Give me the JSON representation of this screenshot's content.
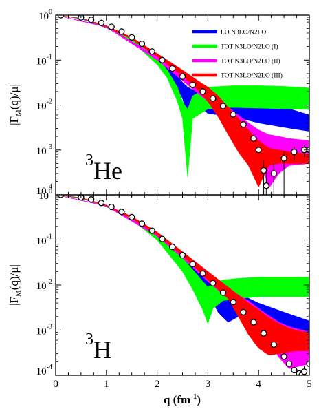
{
  "chart_data": [
    {
      "type": "line",
      "panel": "top",
      "nucleus": {
        "mass": "3",
        "symbol": "He"
      },
      "ylabel": {
        "pre": "|F",
        "sub": "M",
        "post": "(q)/μ|"
      },
      "xlim": [
        0,
        5
      ],
      "ylim": [
        0.0001,
        1
      ],
      "yscale": "log",
      "x_ticks": [
        0,
        1,
        2,
        3,
        4,
        5
      ],
      "y_ticks": [
        {
          "value": 1,
          "base": "10",
          "exp": "0"
        },
        {
          "value": 0.1,
          "base": "10",
          "exp": "-1"
        },
        {
          "value": 0.01,
          "base": "10",
          "exp": "-2"
        },
        {
          "value": 0.001,
          "base": "10",
          "exp": "-3"
        },
        {
          "value": 0.0001,
          "base": "10",
          "exp": "-4"
        }
      ],
      "legend": {
        "placement": "top-right",
        "entries": [
          {
            "label": "LO N3LO/N2LO",
            "color": "#0000ff"
          },
          {
            "label": "TOT N3LO/N2LO (I)",
            "color": "#00ff00"
          },
          {
            "label": "TOT N3LO/N2LO (II)",
            "color": "#ff00ff"
          },
          {
            "label": "TOT N3LO/N2LO (III)",
            "color": "#ff0000"
          }
        ]
      },
      "series": [
        {
          "name": "LO N3LO/N2LO",
          "color": "#0000ff",
          "x": [
            0,
            0.5,
            1,
            1.5,
            2,
            2.3,
            2.5,
            2.6,
            2.7,
            2.8,
            3.0,
            3.5,
            4.0,
            4.5,
            5.0
          ],
          "upper": [
            1,
            0.84,
            0.55,
            0.3,
            0.12,
            0.06,
            0.032,
            0.025,
            0.022,
            0.022,
            0.021,
            0.017,
            0.012,
            0.009,
            0.006
          ],
          "lower": [
            1,
            0.83,
            0.52,
            0.26,
            0.09,
            0.04,
            0.014,
            0.006,
            0.008,
            0.01,
            0.0065,
            0.0055,
            0.004,
            0.0032,
            0.0026
          ]
        },
        {
          "name": "TOT N3LO/N2LO (I)",
          "color": "#00ff00",
          "x": [
            0,
            0.5,
            1,
            1.5,
            2,
            2.2,
            2.4,
            2.5,
            2.6,
            2.7,
            3.0,
            3.5,
            4.0,
            4.5,
            5.0
          ],
          "upper": [
            1,
            0.85,
            0.56,
            0.3,
            0.11,
            0.06,
            0.025,
            0.012,
            0.008,
            0.016,
            0.025,
            0.027,
            0.027,
            0.026,
            0.024
          ],
          "lower": [
            1,
            0.84,
            0.53,
            0.26,
            0.08,
            0.04,
            0.012,
            0.005,
            0.00025,
            0.005,
            0.0082,
            0.0088,
            0.0085,
            0.0082,
            0.008
          ]
        },
        {
          "name": "TOT N3LO/N2LO (II)",
          "color": "#ff00ff",
          "x": [
            0,
            1,
            2,
            2.5,
            3.0,
            3.2,
            3.4,
            3.6,
            3.8,
            4.0,
            4.2,
            4.4,
            4.6,
            5.0
          ],
          "upper": [
            1,
            0.56,
            0.12,
            0.045,
            0.018,
            0.013,
            0.009,
            0.006,
            0.004,
            0.0028,
            0.0022,
            0.002,
            0.0018,
            0.0016
          ],
          "lower": [
            1,
            0.54,
            0.1,
            0.035,
            0.012,
            0.0078,
            0.005,
            0.003,
            0.0018,
            0.0009,
            0.00014,
            0.0003,
            0.00045,
            0.0005
          ]
        },
        {
          "name": "TOT N3LO/N2LO (III)",
          "color": "#ff0000",
          "x": [
            0,
            0.5,
            1,
            1.5,
            2,
            2.5,
            2.8,
            3.0,
            3.2,
            3.4,
            3.6,
            3.8,
            4.0,
            4.2,
            4.4,
            4.6,
            5.0
          ],
          "upper": [
            1,
            0.86,
            0.58,
            0.32,
            0.14,
            0.06,
            0.035,
            0.025,
            0.016,
            0.009,
            0.005,
            0.0028,
            0.0016,
            0.0011,
            0.001,
            0.0009,
            0.0008
          ],
          "lower": [
            1,
            0.85,
            0.55,
            0.29,
            0.12,
            0.045,
            0.022,
            0.012,
            0.0055,
            0.0022,
            0.0009,
            0.00045,
            0.00015,
            0.00045,
            0.0005,
            0.0005,
            0.0005
          ]
        }
      ],
      "experimental_data": {
        "x": [
          0.1,
          0.5,
          0.7,
          0.9,
          1.1,
          1.3,
          1.5,
          1.7,
          1.9,
          2.1,
          2.3,
          2.5,
          2.7,
          2.9,
          3.1,
          3.3,
          3.5,
          3.7,
          3.9,
          4.0,
          4.1,
          4.15,
          4.3,
          4.5,
          4.7,
          4.9,
          5.0
        ],
        "y": [
          1,
          0.89,
          0.79,
          0.67,
          0.55,
          0.43,
          0.32,
          0.23,
          0.155,
          0.1,
          0.065,
          0.043,
          0.028,
          0.02,
          0.014,
          0.0095,
          0.0062,
          0.0037,
          0.0018,
          0.001,
          0.00035,
          0.00016,
          0.0003,
          0.00065,
          0.0009,
          0.001,
          0.001
        ],
        "err_lo": [
          1,
          0.89,
          0.79,
          0.67,
          0.55,
          0.43,
          0.32,
          0.23,
          0.155,
          0.1,
          0.065,
          0.043,
          0.028,
          0.02,
          0.014,
          0.0095,
          0.0062,
          0.0037,
          0.0018,
          0.001,
          0.0001,
          0.0001,
          0.0001,
          0.0001,
          0.0006,
          0.0007,
          0.0007
        ],
        "err_hi": [
          1,
          0.89,
          0.79,
          0.67,
          0.55,
          0.43,
          0.32,
          0.23,
          0.155,
          0.1,
          0.065,
          0.043,
          0.028,
          0.02,
          0.014,
          0.0095,
          0.0062,
          0.0037,
          0.0018,
          0.001,
          0.0006,
          0.0004,
          0.0005,
          0.0009,
          0.0012,
          0.0013,
          0.0013
        ]
      }
    },
    {
      "type": "line",
      "panel": "bottom",
      "nucleus": {
        "mass": "3",
        "symbol": "H"
      },
      "xlabel": {
        "pre": "q (fm",
        "sup": "-1",
        "post": ")"
      },
      "ylabel": {
        "pre": "|F",
        "sub": "M",
        "post": "(q)/μ|"
      },
      "xlim": [
        0,
        5
      ],
      "ylim": [
        0.0001,
        1
      ],
      "yscale": "log",
      "x_ticks": [
        0,
        1,
        2,
        3,
        4,
        5
      ],
      "y_ticks": [
        {
          "value": 1,
          "base": "10",
          "exp": "0"
        },
        {
          "value": 0.1,
          "base": "10",
          "exp": "-1"
        },
        {
          "value": 0.01,
          "base": "10",
          "exp": "-2"
        },
        {
          "value": 0.001,
          "base": "10",
          "exp": "-3"
        },
        {
          "value": 0.0001,
          "base": "10",
          "exp": "-4"
        }
      ],
      "series": [
        {
          "name": "LO N3LO/N2LO",
          "color": "#0000ff",
          "x": [
            0,
            0.5,
            1,
            1.5,
            2,
            2.5,
            2.8,
            3.0,
            3.2,
            3.4,
            3.6,
            4.0,
            4.5,
            5.0
          ],
          "upper": [
            1,
            0.84,
            0.57,
            0.3,
            0.13,
            0.045,
            0.024,
            0.016,
            0.011,
            0.008,
            0.0065,
            0.004,
            0.0025,
            0.0016
          ],
          "lower": [
            1,
            0.83,
            0.55,
            0.27,
            0.11,
            0.035,
            0.015,
            0.007,
            0.0025,
            0.0015,
            0.002,
            0.0013,
            0.0008,
            0.0006
          ]
        },
        {
          "name": "TOT N3LO/N2LO (I)",
          "color": "#00ff00",
          "x": [
            0,
            0.5,
            1,
            1.5,
            2,
            2.5,
            2.7,
            2.9,
            3.0,
            3.1,
            3.3,
            3.6,
            4.0,
            4.5,
            5.0
          ],
          "upper": [
            1,
            0.85,
            0.58,
            0.31,
            0.13,
            0.04,
            0.022,
            0.012,
            0.009,
            0.011,
            0.013,
            0.014,
            0.015,
            0.015,
            0.015
          ],
          "lower": [
            1,
            0.84,
            0.56,
            0.28,
            0.1,
            0.02,
            0.008,
            0.0028,
            0.0014,
            0.003,
            0.0045,
            0.005,
            0.0055,
            0.0055,
            0.0055
          ]
        },
        {
          "name": "TOT N3LO/N2LO (II)",
          "color": "#ff00ff",
          "x": [
            0,
            1,
            2,
            2.5,
            3.0,
            3.5,
            3.8,
            4.0,
            4.2,
            4.4,
            4.6,
            5.0
          ],
          "upper": [
            1,
            0.58,
            0.14,
            0.05,
            0.02,
            0.007,
            0.0045,
            0.003,
            0.0021,
            0.0015,
            0.0012,
            0.0009
          ],
          "lower": [
            1,
            0.56,
            0.12,
            0.04,
            0.012,
            0.004,
            0.002,
            0.0012,
            0.0006,
            0.00025,
            0.00014,
            0.00018
          ]
        },
        {
          "name": "TOT N3LO/N2LO (III)",
          "color": "#ff0000",
          "x": [
            0,
            0.5,
            1,
            1.5,
            2,
            2.5,
            3.0,
            3.4,
            3.6,
            3.8,
            4.0,
            4.2,
            4.4,
            4.6,
            4.8,
            5.0
          ],
          "upper": [
            1,
            0.87,
            0.59,
            0.33,
            0.15,
            0.055,
            0.02,
            0.009,
            0.006,
            0.004,
            0.0028,
            0.0019,
            0.0014,
            0.0011,
            0.00095,
            0.0009
          ],
          "lower": [
            1,
            0.86,
            0.57,
            0.3,
            0.13,
            0.045,
            0.013,
            0.005,
            0.002,
            0.0008,
            0.0004,
            0.00028,
            0.0003,
            0.00033,
            0.00035,
            0.00035
          ]
        }
      ],
      "experimental_data": {
        "x": [
          0.1,
          0.5,
          0.7,
          0.9,
          1.1,
          1.3,
          1.5,
          1.7,
          1.9,
          2.1,
          2.3,
          2.5,
          2.7,
          2.9,
          3.1,
          3.3,
          3.5,
          3.7,
          3.9,
          4.1,
          4.3,
          4.5,
          4.6,
          4.7,
          4.8,
          4.85,
          4.9,
          5.0
        ],
        "y": [
          1,
          0.88,
          0.79,
          0.66,
          0.54,
          0.42,
          0.32,
          0.23,
          0.16,
          0.105,
          0.07,
          0.046,
          0.029,
          0.018,
          0.011,
          0.0068,
          0.0042,
          0.0025,
          0.0015,
          0.00085,
          0.00048,
          0.00026,
          0.00018,
          0.00013,
          0.00011,
          0.0001,
          0.00012,
          0.00018
        ],
        "err_lo": [
          1,
          0.88,
          0.79,
          0.66,
          0.54,
          0.42,
          0.32,
          0.23,
          0.16,
          0.105,
          0.07,
          0.046,
          0.029,
          0.018,
          0.011,
          0.0068,
          0.0042,
          0.0025,
          0.0015,
          0.00085,
          0.00048,
          0.00026,
          0.00018,
          0.00013,
          0.00011,
          0.0001,
          0.0001,
          0.0001
        ],
        "err_hi": [
          1,
          0.88,
          0.79,
          0.66,
          0.54,
          0.42,
          0.32,
          0.23,
          0.16,
          0.105,
          0.07,
          0.046,
          0.029,
          0.018,
          0.011,
          0.0068,
          0.0042,
          0.0025,
          0.0015,
          0.00085,
          0.00048,
          0.00026,
          0.00018,
          0.00013,
          0.00011,
          0.0001,
          0.00016,
          0.00025
        ]
      }
    }
  ]
}
